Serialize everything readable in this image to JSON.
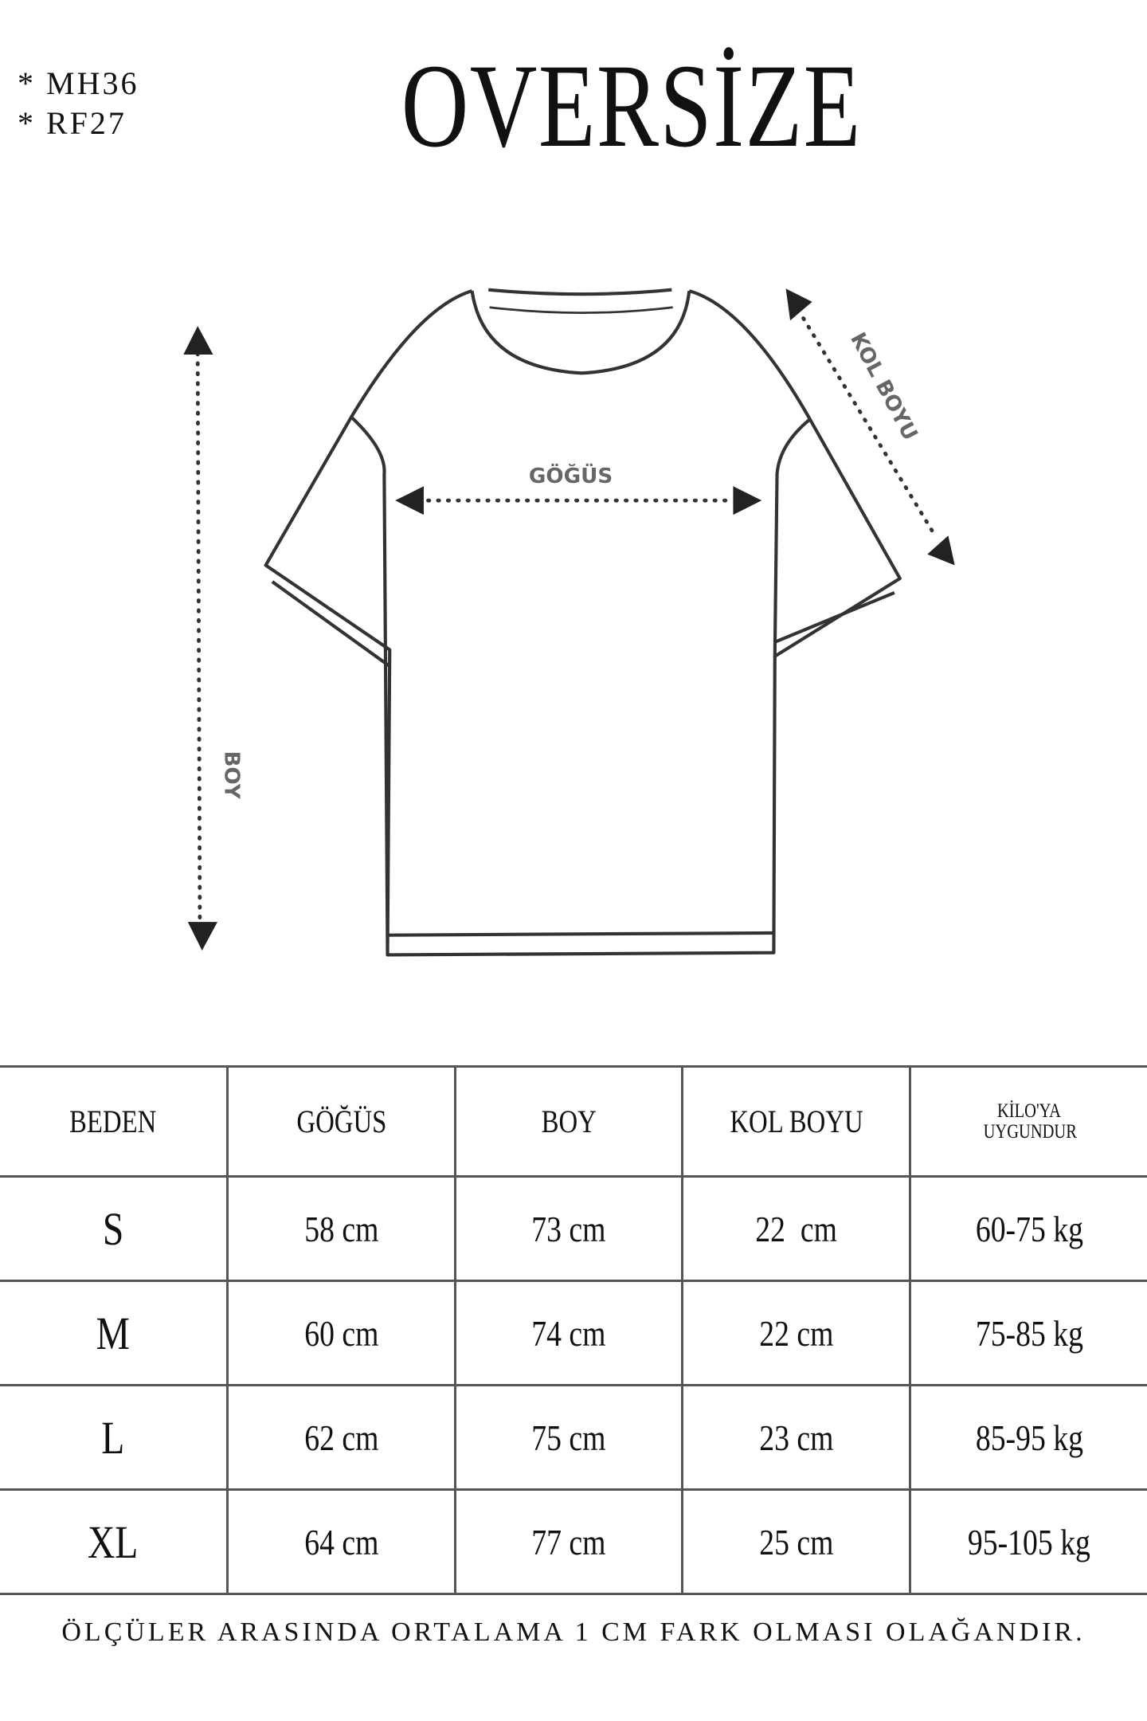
{
  "codes": [
    "* MH36",
    "* RF27"
  ],
  "title": "OVERSİZE",
  "diagram": {
    "chest_label": "GÖĞÜS",
    "length_label": "BOY",
    "sleeve_label": "KOL BOYU"
  },
  "table": {
    "headers": [
      "BEDEN",
      "GÖĞÜS",
      "BOY",
      "KOL BOYU",
      "KİLO'YA UYGUNDUR"
    ],
    "rows": [
      [
        "S",
        "58 cm",
        "73 cm",
        "22  cm",
        "60-75 kg"
      ],
      [
        "M",
        "60 cm",
        "74 cm",
        "22 cm",
        "75-85 kg"
      ],
      [
        "L",
        "62 cm",
        "75 cm",
        "23 cm",
        "85-95 kg"
      ],
      [
        "XL",
        "64 cm",
        "77 cm",
        "25 cm",
        "95-105 kg"
      ]
    ]
  },
  "footer": "ÖLÇÜLER ARASINDA ORTALAMA 1 CM FARK OLMASI OLAĞANDIR."
}
